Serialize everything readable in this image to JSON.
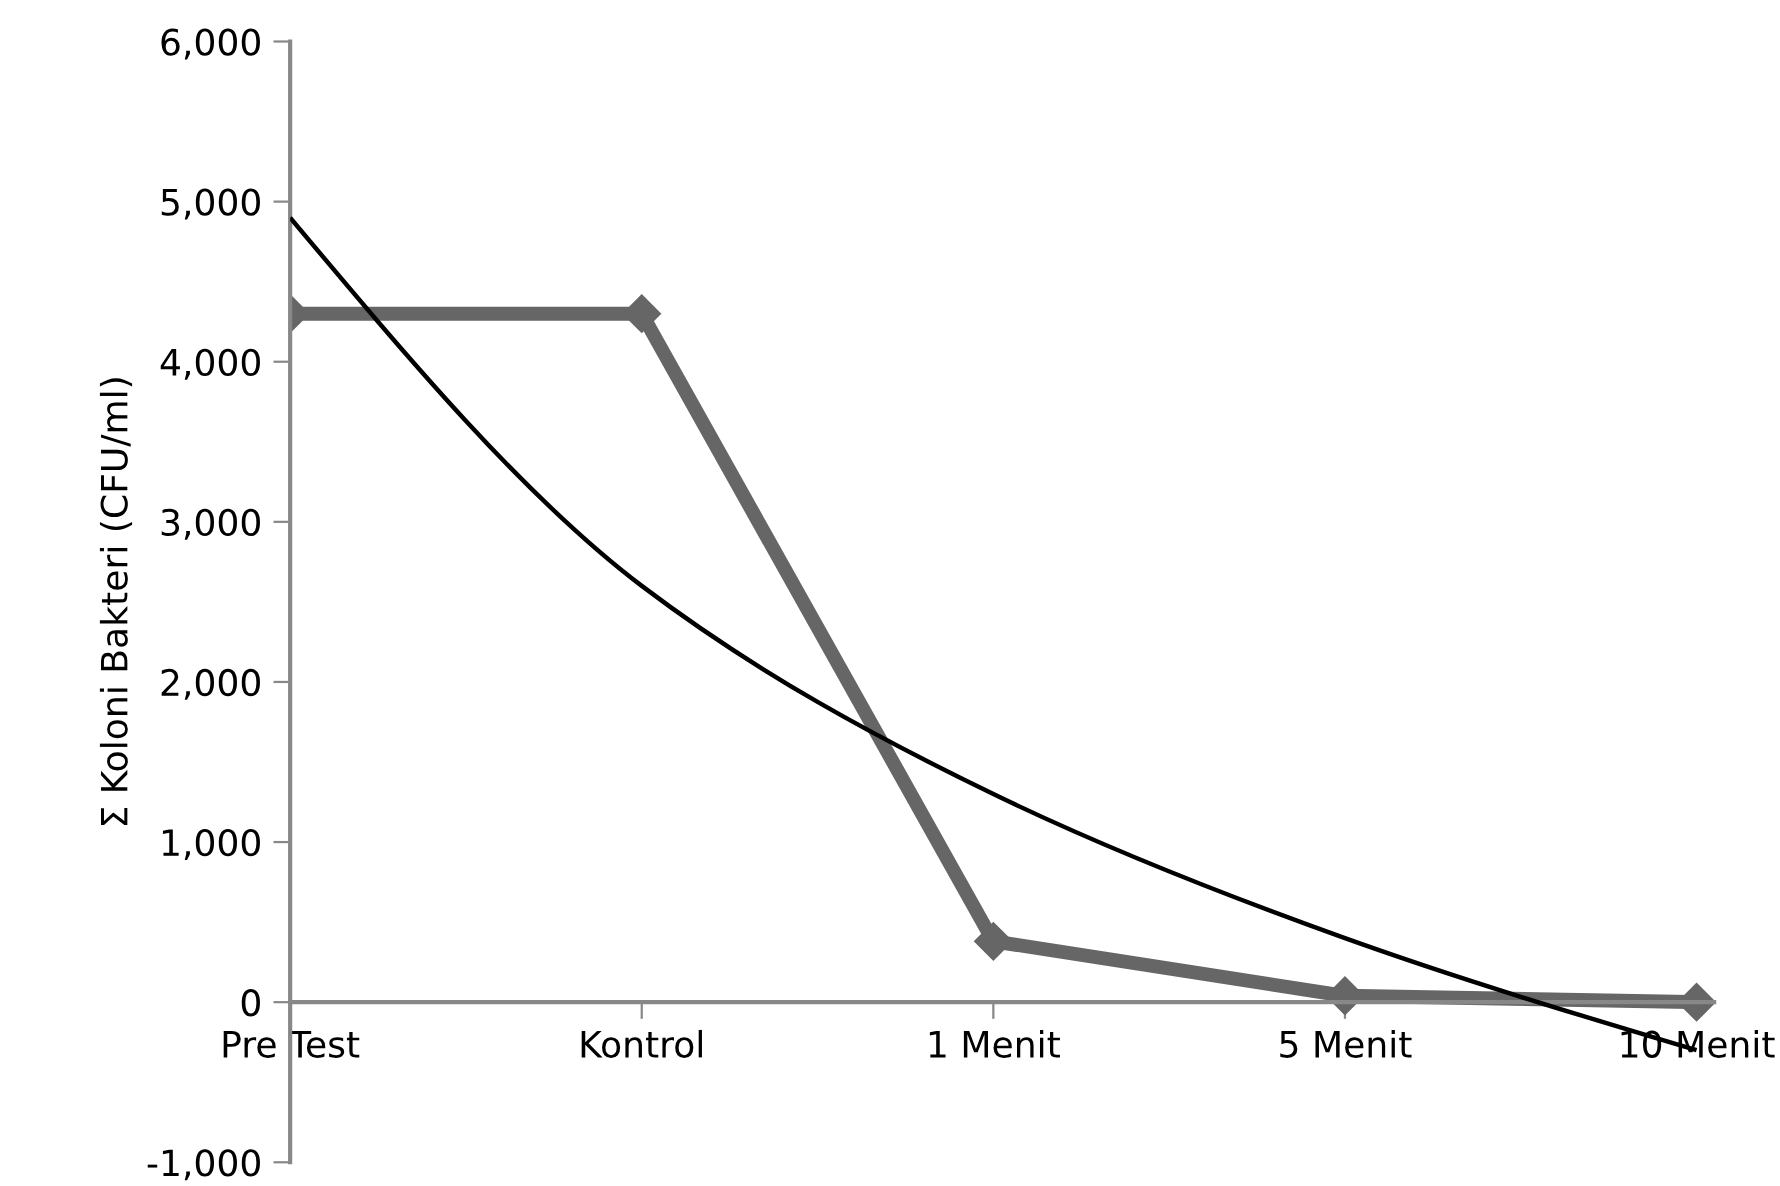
{
  "chart_data": {
    "type": "line",
    "ylabel": "Σ Koloni Bakteri (CFU/ml)",
    "categories": [
      "Pre Test",
      "Kontrol",
      "1 Menit",
      "5 Menit",
      "10 Menit"
    ],
    "series": [
      {
        "color": "#666666",
        "values": [
          4300,
          4300,
          380,
          40,
          0
        ],
        "marker": "diamond"
      },
      {
        "type": "line",
        "color": "#000000",
        "values": [
          4900,
          2600,
          1300,
          400,
          -300
        ],
        "marker": "none"
      }
    ],
    "ylim": [
      -1000,
      6000
    ],
    "yticks": [
      {
        "value": -1000,
        "label": "-1,000"
      },
      0,
      {
        "value": 1000,
        "label": "1,000"
      },
      {
        "value": 2000,
        "label": "2,000"
      },
      {
        "value": 3000,
        "label": "3,000"
      },
      {
        "value": 4000,
        "label": "4,000"
      },
      {
        "value": 5000,
        "label": "5,000"
      },
      {
        "value": 6000,
        "label": "6,000"
      }
    ],
    "grid": false,
    "legend": false
  }
}
